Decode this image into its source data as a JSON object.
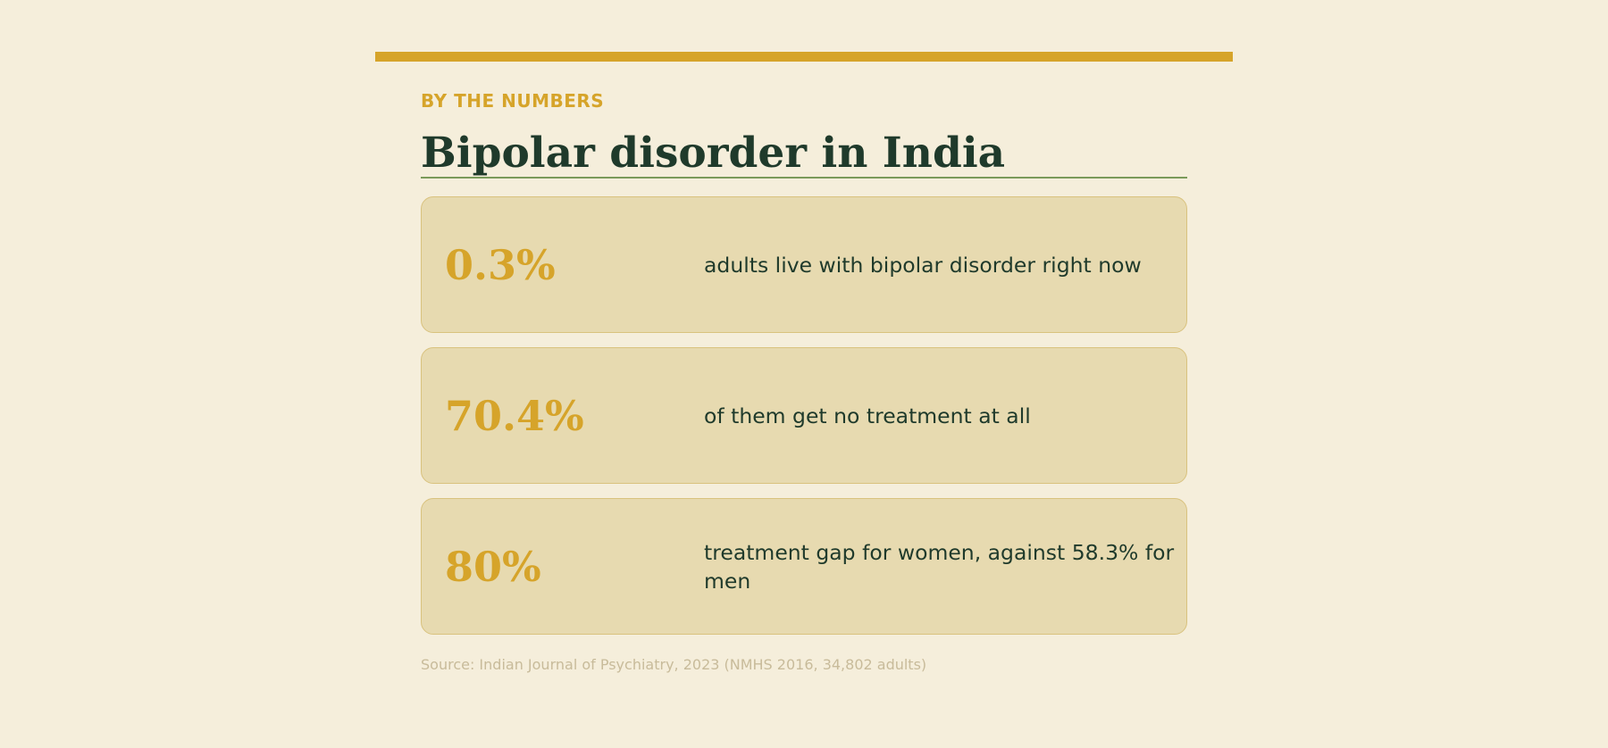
{
  "header": {
    "eyebrow": "BY THE NUMBERS",
    "title": "Bipolar disorder in India"
  },
  "stats": [
    {
      "value": "0.3%",
      "description": "adults live with bipolar disorder right now"
    },
    {
      "value": "70.4%",
      "description": "of them get no treatment at all"
    },
    {
      "value": "80%",
      "description": "treatment gap for women, against 58.3% for men"
    }
  ],
  "footer": {
    "source": "Source: Indian Journal of Psychiatry, 2023 (NMHS 2016, 34,802 adults)"
  },
  "colors": {
    "background": "#f5eedb",
    "accent": "#d6a42a",
    "title": "#1f3a2b",
    "card": "#e7dab0",
    "rule": "#7a9a5a"
  }
}
